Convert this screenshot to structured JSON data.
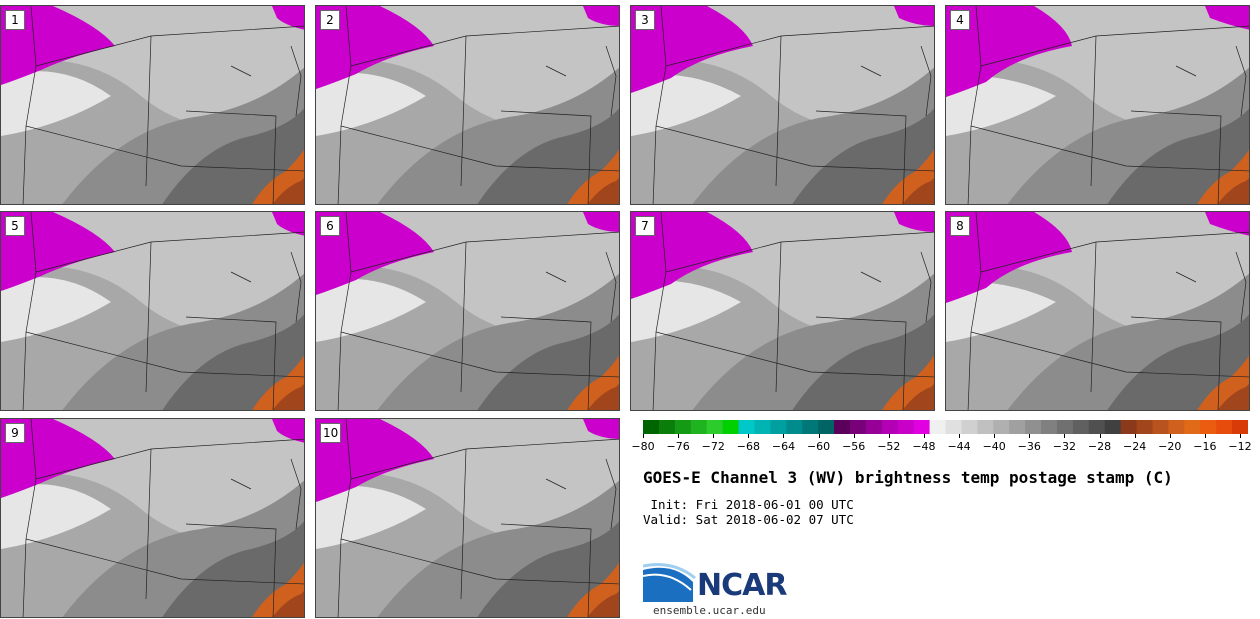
{
  "panels": [
    {
      "label": "1"
    },
    {
      "label": "2"
    },
    {
      "label": "3"
    },
    {
      "label": "4"
    },
    {
      "label": "5"
    },
    {
      "label": "6"
    },
    {
      "label": "7"
    },
    {
      "label": "8"
    },
    {
      "label": "9"
    },
    {
      "label": "10"
    }
  ],
  "colorbar": {
    "ticks": [
      "−80",
      "−76",
      "−72",
      "−68",
      "−64",
      "−60",
      "−56",
      "−52",
      "−48",
      "−44",
      "−40",
      "−36",
      "−32",
      "−28",
      "−24",
      "−20",
      "−16",
      "−12"
    ],
    "colors": [
      "#006400",
      "#0a7d0a",
      "#159a15",
      "#1fb41f",
      "#2ccc2c",
      "#00d000",
      "#00c8c8",
      "#00b4b4",
      "#00a0a0",
      "#008c8c",
      "#007878",
      "#006464",
      "#5a005a",
      "#780078",
      "#960096",
      "#b400b4",
      "#c800c8",
      "#e000e0",
      "#f0f0f0",
      "#e0e0e0",
      "#d0d0d0",
      "#c0c0c0",
      "#b0b0b0",
      "#a0a0a0",
      "#909090",
      "#808080",
      "#707070",
      "#606060",
      "#505050",
      "#404040",
      "#8a3a1a",
      "#a0451c",
      "#b8521e",
      "#d0601e",
      "#e06a18",
      "#ec5c10",
      "#e84c0c",
      "#d83a08"
    ]
  },
  "title": "GOES-E Channel 3 (WV) brightness temp postage stamp (C)",
  "init": " Init: Fri 2018-06-01 00 UTC",
  "valid": "Valid: Sat 2018-06-02 07 UTC",
  "logo": {
    "text": "NCAR",
    "url": "ensemble.ucar.edu"
  },
  "accent_colors": {
    "magenta": "#cc00cc",
    "orange": "#e0601a"
  }
}
